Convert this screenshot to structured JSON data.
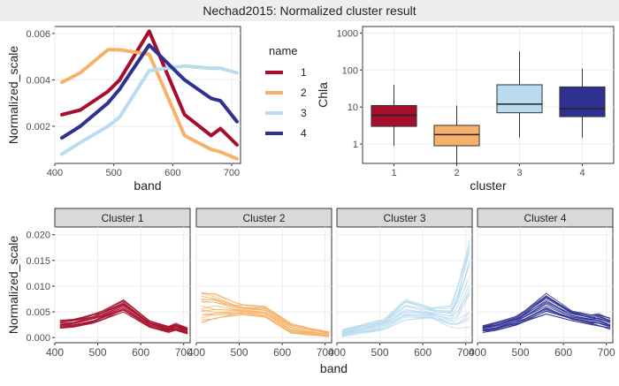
{
  "title": "Nechad2015: Normalized cluster result",
  "colors": {
    "cluster_1": "#a50f2c",
    "cluster_2": "#f6b26b",
    "cluster_3": "#b9dcee",
    "cluster_4": "#2e3191",
    "panel_bg": "#ffffff",
    "grid": "#ebebeb",
    "strip_bg": "#d9d9d9",
    "title_bg": "#eeeeee"
  },
  "chart_data": [
    {
      "type": "line",
      "xlabel": "band",
      "ylabel": "Normalized_scale",
      "xlim": [
        400,
        715
      ],
      "ylim": [
        0.0004,
        0.0063
      ],
      "xticks": [
        400,
        500,
        600,
        700
      ],
      "yticks": [
        0.002,
        0.004,
        0.006
      ],
      "ytick_labels": [
        "0.002",
        "0.004",
        "0.006"
      ],
      "legend_title": "name",
      "legend_position": "right",
      "grid": true,
      "x": [
        412,
        443,
        490,
        510,
        560,
        620,
        665,
        681,
        709
      ],
      "series": [
        {
          "name": "1",
          "color": "cluster_1",
          "values": [
            0.0025,
            0.0027,
            0.0035,
            0.004,
            0.0061,
            0.0025,
            0.0016,
            0.0019,
            0.0012
          ]
        },
        {
          "name": "2",
          "color": "cluster_2",
          "values": [
            0.0039,
            0.0043,
            0.0053,
            0.0053,
            0.0051,
            0.0016,
            0.001,
            0.0009,
            0.0006
          ]
        },
        {
          "name": "3",
          "color": "cluster_3",
          "values": [
            0.0008,
            0.0013,
            0.002,
            0.0024,
            0.0044,
            0.0046,
            0.0045,
            0.0045,
            0.0043
          ]
        },
        {
          "name": "4",
          "color": "cluster_4",
          "values": [
            0.0015,
            0.002,
            0.003,
            0.0036,
            0.0055,
            0.004,
            0.0032,
            0.0031,
            0.0022
          ]
        }
      ]
    },
    {
      "type": "boxplot",
      "xlabel": "cluster",
      "ylabel": "Chla",
      "yscale": "log",
      "ylim": [
        0.3,
        1500
      ],
      "yticks": [
        1,
        10,
        100,
        1000
      ],
      "ytick_labels": [
        "1",
        "10",
        "100",
        "1000"
      ],
      "categories": [
        "1",
        "2",
        "3",
        "4"
      ],
      "grid": true,
      "boxes": [
        {
          "name": "1",
          "color": "cluster_1",
          "min": 0.9,
          "q1": 3,
          "median": 6,
          "q3": 11,
          "max": 40
        },
        {
          "name": "2",
          "color": "cluster_2",
          "min": 0.3,
          "q1": 0.9,
          "median": 1.8,
          "q3": 3.2,
          "max": 11
        },
        {
          "name": "3",
          "color": "cluster_3",
          "min": 1.5,
          "q1": 7,
          "median": 12,
          "q3": 40,
          "max": 320
        },
        {
          "name": "4",
          "color": "cluster_4",
          "min": 1.5,
          "q1": 5.5,
          "median": 9,
          "q3": 35,
          "max": 110
        }
      ]
    },
    {
      "type": "line",
      "facets": [
        "Cluster 1",
        "Cluster 2",
        "Cluster 3",
        "Cluster 4"
      ],
      "xlabel": "band",
      "ylabel": "Normalized_scale",
      "xlim": [
        400,
        715
      ],
      "ylim": [
        -0.001,
        0.0215
      ],
      "xticks": [
        400,
        500,
        600,
        700
      ],
      "xtick_labels": [
        "400",
        "500",
        "600",
        "700"
      ],
      "yticks": [
        0,
        0.005,
        0.01,
        0.015,
        0.02
      ],
      "ytick_labels": [
        "0.000",
        "0.005",
        "0.010",
        "0.015",
        "0.020"
      ],
      "grid": true,
      "x": [
        412,
        443,
        490,
        510,
        560,
        620,
        665,
        681,
        709
      ],
      "spectra": [
        {
          "name": "Cluster 1",
          "color": "cluster_1",
          "lower": [
            0.0018,
            0.002,
            0.0028,
            0.0034,
            0.005,
            0.002,
            0.001,
            0.0013,
            0.0007
          ],
          "upper": [
            0.0034,
            0.0036,
            0.0046,
            0.0052,
            0.0074,
            0.0033,
            0.0022,
            0.0028,
            0.0019
          ]
        },
        {
          "name": "Cluster 2",
          "color": "cluster_2",
          "lower": [
            0.0028,
            0.0034,
            0.0042,
            0.0044,
            0.0038,
            0.0008,
            0.0004,
            0.0003,
            0.0001
          ],
          "upper": [
            0.009,
            0.0086,
            0.0068,
            0.0064,
            0.0062,
            0.0028,
            0.0018,
            0.0016,
            0.0012
          ]
        },
        {
          "name": "Cluster 3",
          "color": "cluster_3",
          "lower": [
            0.0002,
            0.0006,
            0.0012,
            0.0016,
            0.0034,
            0.0038,
            0.002,
            0.0018,
            0.002
          ],
          "upper": [
            0.0016,
            0.0022,
            0.0032,
            0.0036,
            0.0076,
            0.0058,
            0.0062,
            0.01,
            0.0205
          ]
        },
        {
          "name": "Cluster 4",
          "color": "cluster_4",
          "lower": [
            0.001,
            0.0014,
            0.0024,
            0.003,
            0.0045,
            0.0032,
            0.0025,
            0.0022,
            0.0016
          ],
          "upper": [
            0.0024,
            0.003,
            0.0042,
            0.0052,
            0.0086,
            0.0052,
            0.0044,
            0.0048,
            0.0038
          ]
        }
      ]
    }
  ]
}
